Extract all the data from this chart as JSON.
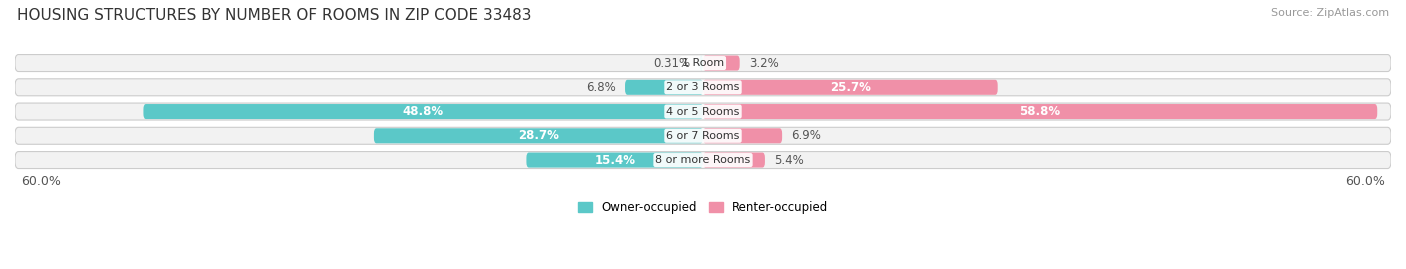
{
  "title": "HOUSING STRUCTURES BY NUMBER OF ROOMS IN ZIP CODE 33483",
  "source": "Source: ZipAtlas.com",
  "categories": [
    "1 Room",
    "2 or 3 Rooms",
    "4 or 5 Rooms",
    "6 or 7 Rooms",
    "8 or more Rooms"
  ],
  "owner_values": [
    0.31,
    6.8,
    48.8,
    28.7,
    15.4
  ],
  "renter_values": [
    3.2,
    25.7,
    58.8,
    6.9,
    5.4
  ],
  "max_val": 60.0,
  "owner_color": "#5BC8C8",
  "renter_color": "#F090A8",
  "bar_bg_color": "#F2F2F2",
  "bar_border_color": "#CCCCCC",
  "title_fontsize": 11,
  "source_fontsize": 8,
  "axis_label_fontsize": 9,
  "bar_label_fontsize": 8.5,
  "category_label_fontsize": 8,
  "legend_fontsize": 8.5,
  "background_color": "#ffffff"
}
